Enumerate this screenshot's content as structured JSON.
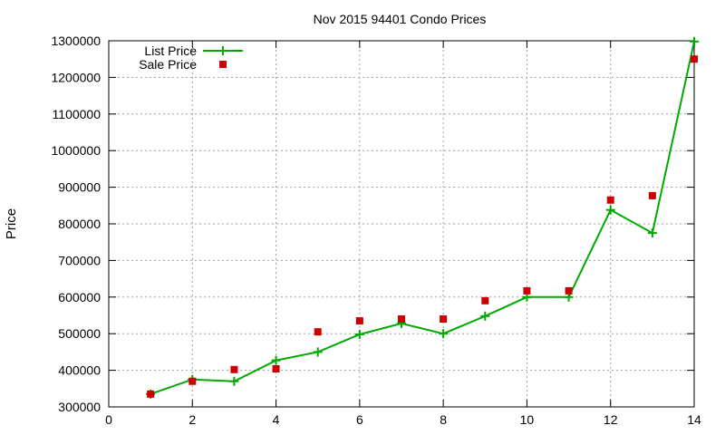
{
  "chart_data": {
    "type": "line",
    "title": "Nov 2015 94401 Condo Prices",
    "xlabel": "",
    "ylabel": "Price",
    "xlim": [
      0,
      14
    ],
    "ylim": [
      300000,
      1300000
    ],
    "x_ticks": [
      0,
      2,
      4,
      6,
      8,
      10,
      12,
      14
    ],
    "y_ticks": [
      300000,
      400000,
      500000,
      600000,
      700000,
      800000,
      900000,
      1000000,
      1100000,
      1200000,
      1300000
    ],
    "grid": true,
    "legend_position": "top-left",
    "series": [
      {
        "name": "List Price",
        "style": "line+cross",
        "color": "#00aa00",
        "x": [
          1,
          2,
          3,
          4,
          5,
          6,
          7,
          8,
          9,
          10,
          11,
          12,
          13,
          14
        ],
        "values": [
          335000,
          375000,
          370000,
          427000,
          450000,
          498000,
          528000,
          500000,
          548000,
          600000,
          600000,
          838000,
          775000,
          1298000
        ]
      },
      {
        "name": "Sale Price",
        "style": "square-marker",
        "color": "#cc0000",
        "x": [
          1,
          2,
          3,
          4,
          5,
          6,
          7,
          8,
          9,
          10,
          11,
          12,
          13,
          14
        ],
        "values": [
          335000,
          370000,
          402000,
          404000,
          505000,
          535000,
          540000,
          540000,
          590000,
          617000,
          617000,
          865000,
          877000,
          1250000
        ]
      }
    ]
  }
}
